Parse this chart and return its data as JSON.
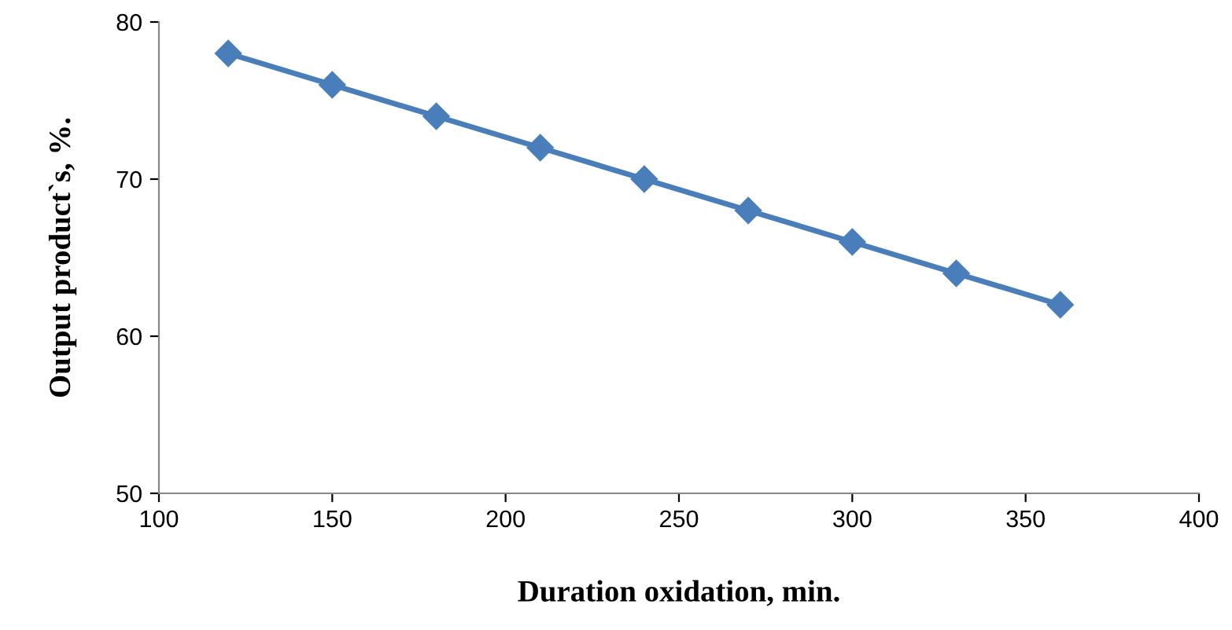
{
  "chart_data": {
    "type": "line",
    "xlabel": "Duration oxidation, min.",
    "ylabel": "Output product`s, %.",
    "x": [
      120,
      150,
      180,
      210,
      240,
      270,
      300,
      330,
      360
    ],
    "series": [
      {
        "color": "#4a7ebb",
        "values": [
          78,
          76,
          74,
          72,
          70,
          68,
          66,
          64,
          62
        ]
      }
    ],
    "xlim": [
      100,
      400
    ],
    "xticks": [
      100,
      150,
      200,
      250,
      300,
      350,
      400
    ],
    "ylim": [
      50,
      80
    ],
    "yticks": [
      50,
      60,
      70,
      80
    ],
    "marker": "diamond",
    "line_style": "solid",
    "grid": false,
    "legend": false
  }
}
